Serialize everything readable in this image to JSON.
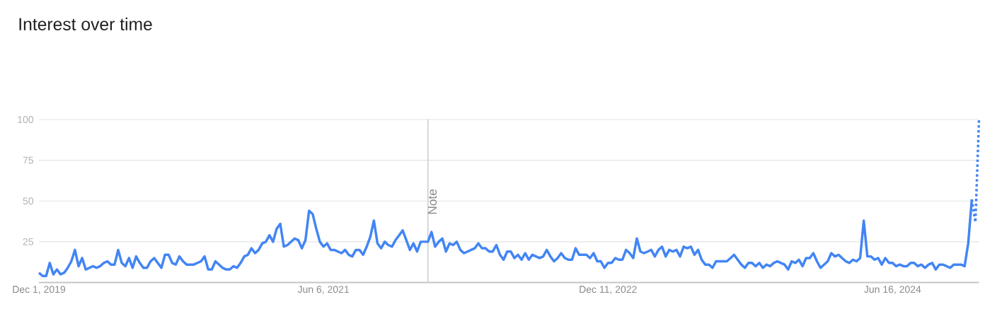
{
  "chart_data": {
    "type": "line",
    "title": "Interest over time",
    "x": [
      "2019-12-01",
      "2019-12-08",
      "2019-12-15",
      "2019-12-22",
      "2019-12-29",
      "2020-01-05",
      "2020-01-12",
      "2020-01-19",
      "2020-01-26",
      "2020-02-02",
      "2020-02-09",
      "2020-02-16",
      "2020-02-23",
      "2020-03-01",
      "2020-03-08",
      "2020-03-15",
      "2020-03-22",
      "2020-03-29",
      "2020-04-05",
      "2020-04-12",
      "2020-04-19",
      "2020-04-26",
      "2020-05-03",
      "2020-05-10",
      "2020-05-17",
      "2020-05-24",
      "2020-05-31",
      "2020-06-07",
      "2020-06-14",
      "2020-06-21",
      "2020-06-28",
      "2020-07-05",
      "2020-07-12",
      "2020-07-19",
      "2020-07-26",
      "2020-08-02",
      "2020-08-09",
      "2020-08-16",
      "2020-08-23",
      "2020-08-30",
      "2020-09-06",
      "2020-09-13",
      "2020-09-20",
      "2020-09-27",
      "2020-10-04",
      "2020-10-11",
      "2020-10-18",
      "2020-10-25",
      "2020-11-01",
      "2020-11-08",
      "2020-11-15",
      "2020-11-22",
      "2020-11-29",
      "2020-12-06",
      "2020-12-13",
      "2020-12-20",
      "2020-12-27",
      "2021-01-03",
      "2021-01-10",
      "2021-01-17",
      "2021-01-24",
      "2021-01-31",
      "2021-02-07",
      "2021-02-14",
      "2021-02-21",
      "2021-02-28",
      "2021-03-07",
      "2021-03-14",
      "2021-03-21",
      "2021-03-28",
      "2021-04-04",
      "2021-04-11",
      "2021-04-18",
      "2021-04-25",
      "2021-05-02",
      "2021-05-09",
      "2021-05-16",
      "2021-05-23",
      "2021-05-30",
      "2021-06-06",
      "2021-06-13",
      "2021-06-20",
      "2021-06-27",
      "2021-07-04",
      "2021-07-11",
      "2021-07-18",
      "2021-07-25",
      "2021-08-01",
      "2021-08-08",
      "2021-08-15",
      "2021-08-22",
      "2021-08-29",
      "2021-09-05",
      "2021-09-12",
      "2021-09-19",
      "2021-09-26",
      "2021-10-03",
      "2021-10-10",
      "2021-10-17",
      "2021-10-24",
      "2021-10-31",
      "2021-11-07",
      "2021-11-14",
      "2021-11-21",
      "2021-11-28",
      "2021-12-05",
      "2021-12-12",
      "2021-12-19",
      "2021-12-26",
      "2022-01-02",
      "2022-01-09",
      "2022-01-16",
      "2022-01-23",
      "2022-01-30",
      "2022-02-06",
      "2022-02-13",
      "2022-02-20",
      "2022-02-27",
      "2022-03-06",
      "2022-03-13",
      "2022-03-20",
      "2022-03-27",
      "2022-04-03",
      "2022-04-10",
      "2022-04-17",
      "2022-04-24",
      "2022-05-01",
      "2022-05-08",
      "2022-05-15",
      "2022-05-22",
      "2022-05-29",
      "2022-06-05",
      "2022-06-12",
      "2022-06-19",
      "2022-06-26",
      "2022-07-03",
      "2022-07-10",
      "2022-07-17",
      "2022-07-24",
      "2022-07-31",
      "2022-08-07",
      "2022-08-14",
      "2022-08-21",
      "2022-08-28",
      "2022-09-04",
      "2022-09-11",
      "2022-09-18",
      "2022-09-25",
      "2022-10-02",
      "2022-10-09",
      "2022-10-16",
      "2022-10-23",
      "2022-10-30",
      "2022-11-06",
      "2022-11-13",
      "2022-11-20",
      "2022-11-27",
      "2022-12-04",
      "2022-12-11",
      "2022-12-18",
      "2022-12-25",
      "2023-01-01",
      "2023-01-08",
      "2023-01-15",
      "2023-01-22",
      "2023-01-29",
      "2023-02-05",
      "2023-02-12",
      "2023-02-19",
      "2023-02-26",
      "2023-03-05",
      "2023-03-12",
      "2023-03-19",
      "2023-03-26",
      "2023-04-02",
      "2023-04-09",
      "2023-04-16",
      "2023-04-23",
      "2023-04-30",
      "2023-05-07",
      "2023-05-14",
      "2023-05-21",
      "2023-05-28",
      "2023-06-04",
      "2023-06-11",
      "2023-06-18",
      "2023-06-25",
      "2023-07-02",
      "2023-07-09",
      "2023-07-16",
      "2023-07-23",
      "2023-07-30",
      "2023-08-06",
      "2023-08-13",
      "2023-08-20",
      "2023-08-27",
      "2023-09-03",
      "2023-09-10",
      "2023-09-17",
      "2023-09-24",
      "2023-10-01",
      "2023-10-08",
      "2023-10-15",
      "2023-10-22",
      "2023-10-29",
      "2023-11-05",
      "2023-11-12",
      "2023-11-19",
      "2023-11-26",
      "2023-12-03",
      "2023-12-10",
      "2023-12-17",
      "2023-12-24",
      "2023-12-31",
      "2024-01-07",
      "2024-01-14",
      "2024-01-21",
      "2024-01-28",
      "2024-02-04",
      "2024-02-11",
      "2024-02-18",
      "2024-02-25",
      "2024-03-03",
      "2024-03-10",
      "2024-03-17",
      "2024-03-24",
      "2024-03-31",
      "2024-04-07",
      "2024-04-14",
      "2024-04-21",
      "2024-04-28",
      "2024-05-05",
      "2024-05-12",
      "2024-05-19",
      "2024-05-26",
      "2024-06-02",
      "2024-06-09",
      "2024-06-16",
      "2024-06-23",
      "2024-06-30",
      "2024-07-07",
      "2024-07-14",
      "2024-07-21",
      "2024-07-28",
      "2024-08-04",
      "2024-08-11",
      "2024-08-18",
      "2024-08-25",
      "2024-09-01",
      "2024-09-08",
      "2024-09-15",
      "2024-09-22",
      "2024-09-29",
      "2024-10-06",
      "2024-10-13",
      "2024-10-20",
      "2024-10-27",
      "2024-11-03",
      "2024-11-10",
      "2024-11-17"
    ],
    "series": [
      {
        "color": "#4285f4",
        "values": [
          6,
          4,
          4,
          12,
          5,
          8,
          5,
          6,
          9,
          13,
          20,
          10,
          15,
          8,
          9,
          10,
          9,
          10,
          12,
          13,
          11,
          11,
          20,
          12,
          10,
          15,
          9,
          16,
          12,
          9,
          9,
          13,
          15,
          12,
          9,
          17,
          17,
          12,
          11,
          16,
          13,
          11,
          11,
          11,
          12,
          13,
          16,
          8,
          8,
          13,
          11,
          9,
          8,
          8,
          10,
          9,
          12,
          16,
          17,
          21,
          18,
          20,
          24,
          25,
          29,
          25,
          33,
          36,
          22,
          23,
          25,
          27,
          26,
          21,
          26,
          44,
          42,
          33,
          25,
          22,
          24,
          20,
          20,
          19,
          18,
          20,
          17,
          16,
          20,
          20,
          17,
          22,
          28,
          38,
          24,
          21,
          25,
          23,
          22,
          26,
          29,
          32,
          26,
          20,
          24,
          19,
          25,
          25,
          25,
          31,
          22,
          25,
          27,
          19,
          24,
          23,
          25,
          20,
          18,
          19,
          20,
          21,
          24,
          21,
          21,
          19,
          19,
          23,
          17,
          14,
          19,
          19,
          15,
          17,
          14,
          18,
          14,
          17,
          16,
          15,
          16,
          20,
          16,
          13,
          15,
          18,
          15,
          14,
          14,
          21,
          17,
          17,
          17,
          15,
          18,
          13,
          13,
          9,
          12,
          12,
          15,
          14,
          14,
          20,
          18,
          15,
          27,
          19,
          18,
          19,
          20,
          16,
          20,
          22,
          16,
          20,
          19,
          20,
          16,
          22,
          21,
          22,
          17,
          20,
          14,
          11,
          11,
          9,
          13,
          13,
          13,
          13,
          15,
          17,
          14,
          11,
          9,
          12,
          12,
          10,
          12,
          9,
          11,
          10,
          12,
          13,
          12,
          11,
          8,
          13,
          12,
          14,
          10,
          15,
          15,
          18,
          13,
          9,
          11,
          13,
          18,
          16,
          17,
          15,
          13,
          12,
          14,
          13,
          15,
          38,
          16,
          16,
          14,
          15,
          11,
          15,
          12,
          12,
          10,
          11,
          10,
          10,
          12,
          12,
          10,
          11,
          9,
          11,
          12,
          8,
          11,
          11,
          10,
          9,
          11,
          11,
          11,
          10,
          24,
          51
        ]
      },
      {
        "color": "#4285f4",
        "line_style": "dotted",
        "x": [
          "2024-11-17",
          "2024-11-24",
          "2024-12-01"
        ],
        "values": [
          51,
          37,
          100
        ]
      }
    ],
    "line_style": "solid",
    "xlim": [
      "2019-12-01",
      "2024-12-01"
    ],
    "xticks": [
      {
        "value": "2019-12-01",
        "label": "Dec 1, 2019"
      },
      {
        "value": "2021-06-06",
        "label": "Jun 6, 2021"
      },
      {
        "value": "2022-12-11",
        "label": "Dec 11, 2022"
      },
      {
        "value": "2024-06-16",
        "label": "Jun 16, 2024"
      }
    ],
    "ylim": [
      0,
      100
    ],
    "yticks": [
      25,
      50,
      75,
      100
    ],
    "grid": "y",
    "ref_lines": [
      {
        "axis": "x",
        "value": "2021-12-26",
        "label": "Note",
        "color": "#cccccc"
      }
    ]
  }
}
